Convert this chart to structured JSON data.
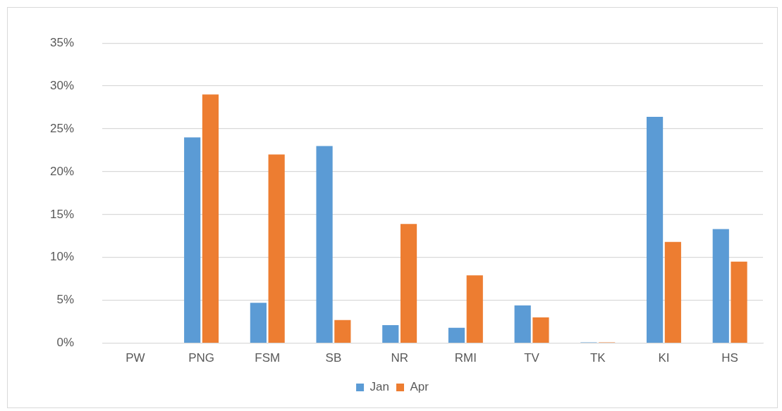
{
  "chart_data": {
    "type": "bar",
    "categories": [
      "PW",
      "PNG",
      "FSM",
      "SB",
      "NR",
      "RMI",
      "TV",
      "TK",
      "KI",
      "HS"
    ],
    "series": [
      {
        "name": "Jan",
        "color": "#5b9bd5",
        "values": [
          0,
          24.0,
          4.7,
          23.0,
          2.1,
          1.8,
          4.4,
          0.1,
          26.4,
          13.3
        ]
      },
      {
        "name": "Apr",
        "color": "#ed7d31",
        "values": [
          0,
          29.0,
          22.0,
          2.7,
          13.9,
          7.9,
          3.0,
          0.1,
          11.8,
          9.5
        ]
      }
    ],
    "ylim": [
      0,
      35
    ],
    "yticks": [
      {
        "value": 0,
        "label": "0%"
      },
      {
        "value": 5,
        "label": "5%"
      },
      {
        "value": 10,
        "label": "10%"
      },
      {
        "value": 15,
        "label": "15%"
      },
      {
        "value": 20,
        "label": "20%"
      },
      {
        "value": 25,
        "label": "25%"
      },
      {
        "value": 30,
        "label": "30%"
      },
      {
        "value": 35,
        "label": "35%"
      }
    ],
    "grid": "y",
    "legend": "bottom"
  }
}
